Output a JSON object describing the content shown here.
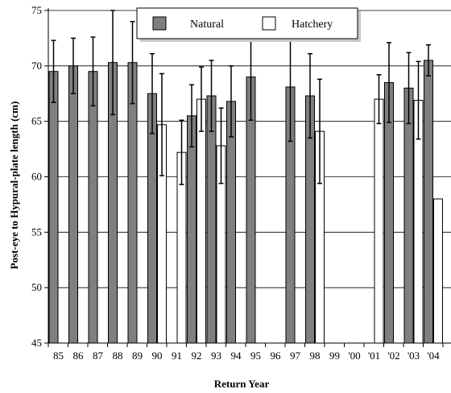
{
  "chart_data": {
    "type": "bar",
    "title": "",
    "xlabel": "Return Year",
    "ylabel": "Post-eye to Hypural-plate length (cm)",
    "ylim": [
      45,
      75
    ],
    "yticks": [
      45,
      50,
      55,
      60,
      65,
      70,
      75
    ],
    "grid": "horizontal",
    "legend_position": "top-center",
    "categories": [
      "85",
      "86",
      "87",
      "88",
      "89",
      "90",
      "91",
      "92",
      "93",
      "94",
      "95",
      "96",
      "97",
      "98",
      "99",
      "'00",
      "'01",
      "'02",
      "'03",
      "'04"
    ],
    "series": [
      {
        "name": "Natural",
        "color": "#7f7f7f",
        "values": [
          69.5,
          70.0,
          69.5,
          70.3,
          70.3,
          67.5,
          null,
          65.5,
          67.3,
          66.8,
          69.0,
          null,
          68.1,
          67.3,
          null,
          null,
          null,
          68.5,
          68.0,
          70.5
        ],
        "error": [
          2.8,
          2.5,
          3.1,
          4.7,
          3.7,
          3.6,
          null,
          2.8,
          3.2,
          3.2,
          3.9,
          null,
          4.9,
          3.8,
          null,
          null,
          null,
          3.6,
          3.2,
          1.4
        ]
      },
      {
        "name": "Hatchery",
        "color": "#ffffff",
        "values": [
          null,
          null,
          null,
          null,
          null,
          64.7,
          62.2,
          67.0,
          62.8,
          null,
          null,
          null,
          null,
          64.1,
          null,
          null,
          67.0,
          null,
          66.9,
          58.0
        ],
        "error": [
          null,
          null,
          null,
          null,
          null,
          4.6,
          2.9,
          2.9,
          3.4,
          null,
          null,
          null,
          null,
          4.7,
          null,
          null,
          2.2,
          null,
          3.5,
          null
        ]
      }
    ]
  }
}
